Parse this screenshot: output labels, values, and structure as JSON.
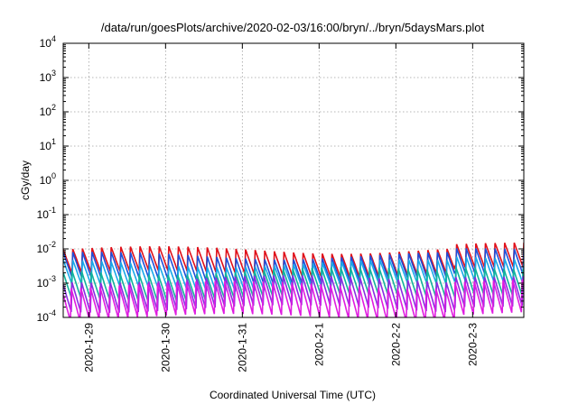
{
  "chart_data": {
    "type": "line",
    "title": "/data/run/goesPlots/archive/2020-02-03/16:00/bryn/../bryn/5daysMars.plot",
    "xlabel": "Coordinated Universal Time (UTC)",
    "ylabel": "cGy/day",
    "y_scale": "log",
    "ylim": [
      0.0001,
      10000
    ],
    "y_ticks": [
      {
        "exp": -4,
        "base": "10",
        "sup": "-4"
      },
      {
        "exp": -3,
        "base": "10",
        "sup": "-3"
      },
      {
        "exp": -2,
        "base": "10",
        "sup": "-2"
      },
      {
        "exp": -1,
        "base": "10",
        "sup": "-1"
      },
      {
        "exp": 0,
        "base": "10",
        "sup": "0"
      },
      {
        "exp": 1,
        "base": "10",
        "sup": "1"
      },
      {
        "exp": 2,
        "base": "10",
        "sup": "2"
      },
      {
        "exp": 3,
        "base": "10",
        "sup": "3"
      },
      {
        "exp": 4,
        "base": "10",
        "sup": "4"
      }
    ],
    "x_ticks": [
      "2020-1-29",
      "2020-1-30",
      "2020-1-31",
      "2020-2-1",
      "2020-2-2",
      "2020-2-3"
    ],
    "xlim": [
      "2020-01-28T16:00",
      "2020-02-03T16:00"
    ],
    "grid": true,
    "sawtooth_period_hours": 3,
    "series": [
      {
        "color": "#e0101a",
        "peak": 0.0095,
        "trough": 0.0016
      },
      {
        "color": "#1f4fd8",
        "peak": 0.007,
        "trough": 0.0011
      },
      {
        "color": "#18a8e8",
        "peak": 0.0045,
        "trough": 0.00075
      },
      {
        "color": "#12b39a",
        "peak": 0.0025,
        "trough": 0.00035
      },
      {
        "color": "#8a2be2",
        "peak": 0.0016,
        "trough": 0.00018
      },
      {
        "color": "#e01ce0",
        "peak": 0.001,
        "trough": 9e-05
      }
    ]
  }
}
